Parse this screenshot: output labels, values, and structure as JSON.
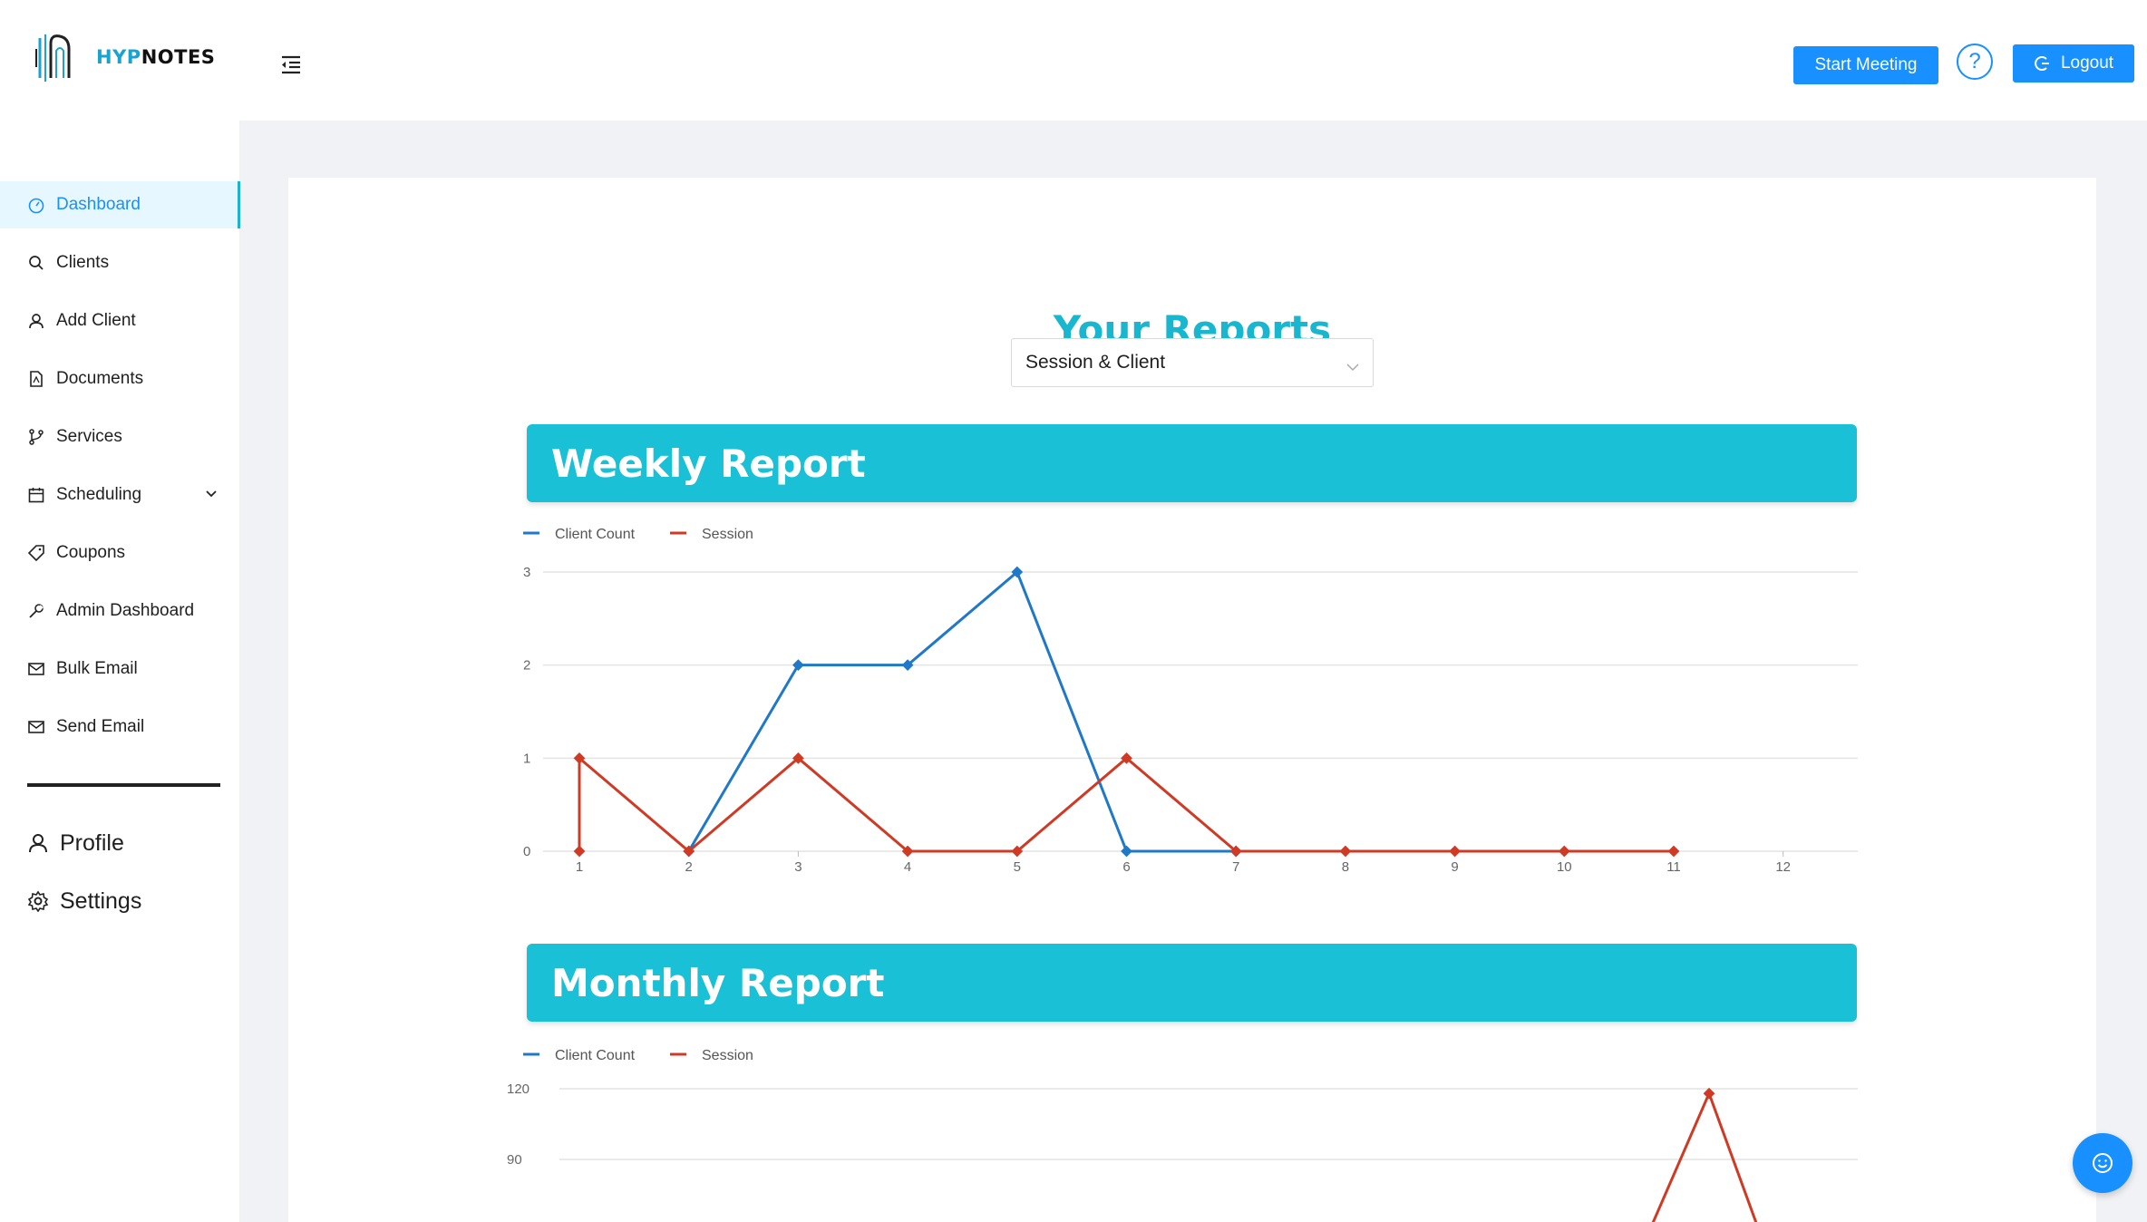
{
  "app": {
    "logo_text_accent": "HYP",
    "logo_text_rest": "NOTES"
  },
  "header": {
    "start_meeting_label": "Start Meeting",
    "help_label": "?",
    "logout_label": "Logout"
  },
  "sidebar": {
    "items": [
      {
        "label": "Dashboard",
        "icon": "dashboard-icon",
        "active": true
      },
      {
        "label": "Clients",
        "icon": "search-icon"
      },
      {
        "label": "Add Client",
        "icon": "user-icon"
      },
      {
        "label": "Documents",
        "icon": "document-icon"
      },
      {
        "label": "Services",
        "icon": "branch-icon"
      },
      {
        "label": "Scheduling",
        "icon": "calendar-icon",
        "expandable": true
      },
      {
        "label": "Coupons",
        "icon": "tag-icon"
      },
      {
        "label": "Admin Dashboard",
        "icon": "tool-icon"
      },
      {
        "label": "Bulk Email",
        "icon": "mail-icon"
      },
      {
        "label": "Send Email",
        "icon": "mail-icon"
      }
    ],
    "profile_label": "Profile",
    "settings_label": "Settings"
  },
  "main": {
    "title": "Your Reports",
    "report_select_value": "Session & Client",
    "weekly_title": "Weekly Report",
    "monthly_title": "Monthly Report"
  },
  "colors": {
    "accent": "#19c0d6",
    "primary": "#1890ff",
    "client_count": "#1f78c8",
    "session": "#d03a24"
  },
  "chart_data": [
    {
      "type": "line",
      "title": "Weekly Report",
      "x": [
        1,
        2,
        3,
        4,
        5,
        6,
        7,
        8,
        9,
        10,
        11,
        12
      ],
      "series": [
        {
          "name": "Client Count",
          "values": [
            null,
            0,
            2,
            2,
            3,
            0,
            0,
            null,
            null,
            null,
            null,
            null
          ]
        },
        {
          "name": "Session",
          "values": [
            1,
            0,
            1,
            0,
            0,
            1,
            0,
            0,
            0,
            0,
            0,
            null
          ]
        }
      ],
      "yticks": [
        0,
        1,
        2,
        3
      ],
      "ylim": [
        0,
        3
      ],
      "legend": "top-left",
      "grid": true
    },
    {
      "type": "line",
      "title": "Monthly Report",
      "yticks": [
        90,
        120
      ],
      "series": [
        {
          "name": "Client Count"
        },
        {
          "name": "Session",
          "partial_values_visible": [
            118
          ]
        }
      ],
      "legend": "top-left",
      "grid": true
    }
  ]
}
